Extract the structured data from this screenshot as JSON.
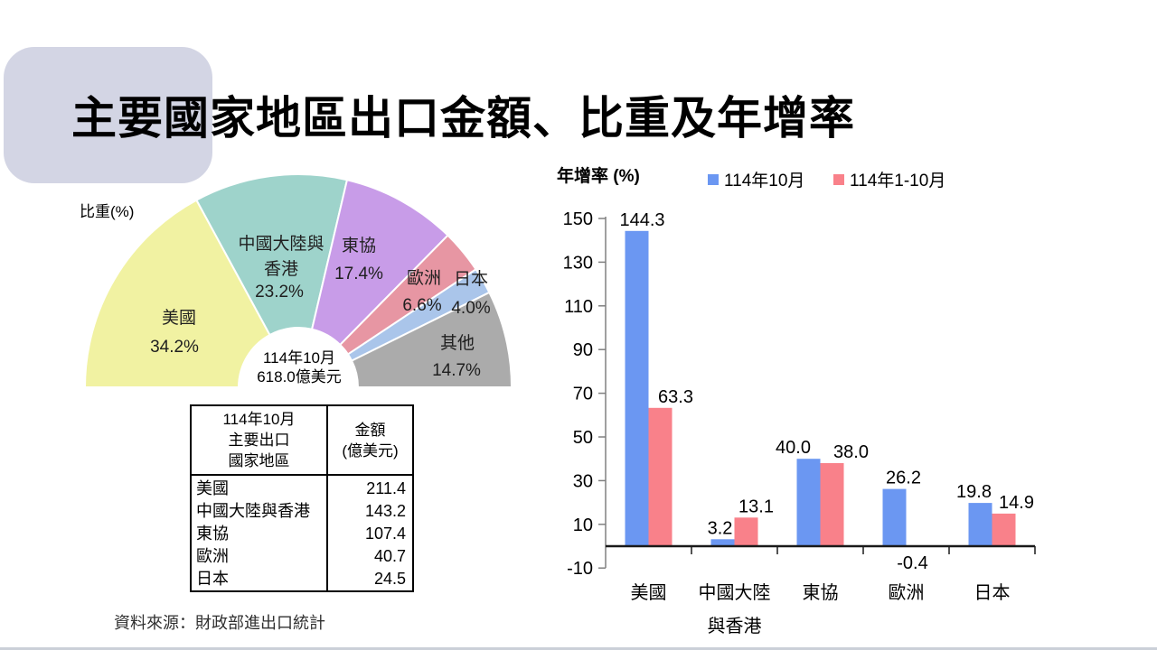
{
  "slide": {
    "title": "主要國家地區出口金額、比重及年增率",
    "source_note": "資料來源：財政部進出口統計"
  },
  "chart_data": [
    {
      "type": "pie",
      "shape": "half-donut",
      "share_axis_label": "比重(%)",
      "center_label_line1": "114年10月",
      "center_label_line2": "618.0億美元",
      "labels": [
        "美國",
        "中國大陸與香港",
        "東協",
        "歐洲",
        "日本",
        "其他"
      ],
      "values": [
        34.2,
        23.2,
        17.4,
        6.6,
        4.0,
        14.7
      ],
      "value_suffix": "%",
      "colors": [
        "#f1f2a2",
        "#9ed3cb",
        "#c89ce8",
        "#e796a3",
        "#aac5ea",
        "#ababab"
      ]
    },
    {
      "type": "bar",
      "ylabel": "年增率 (%)",
      "categories": [
        "美國",
        "中國大陸與香港",
        "東協",
        "歐洲",
        "日本"
      ],
      "series": [
        {
          "name": "114年10月",
          "color": "#6b97f2",
          "values": [
            144.3,
            3.2,
            40.0,
            26.2,
            19.8
          ]
        },
        {
          "name": "114年1-10月",
          "color": "#f9818a",
          "values": [
            63.3,
            13.1,
            38.0,
            -0.4,
            14.9
          ]
        }
      ],
      "ylim": [
        -10,
        150
      ],
      "yticks": [
        150,
        130,
        110,
        90,
        70,
        50,
        30,
        10,
        -10
      ],
      "grid": false,
      "legend_position": "top-right"
    },
    {
      "type": "table",
      "header": {
        "col1": "114年10月\n主要出口\n國家地區",
        "col2": "金額\n(億美元)"
      },
      "rows": [
        {
          "label": "美國",
          "value": "211.4"
        },
        {
          "label": "中國大陸與香港",
          "value": "143.2"
        },
        {
          "label": "東協",
          "value": "107.4"
        },
        {
          "label": "歐洲",
          "value": "40.7"
        },
        {
          "label": "日本",
          "value": "24.5"
        }
      ]
    }
  ]
}
